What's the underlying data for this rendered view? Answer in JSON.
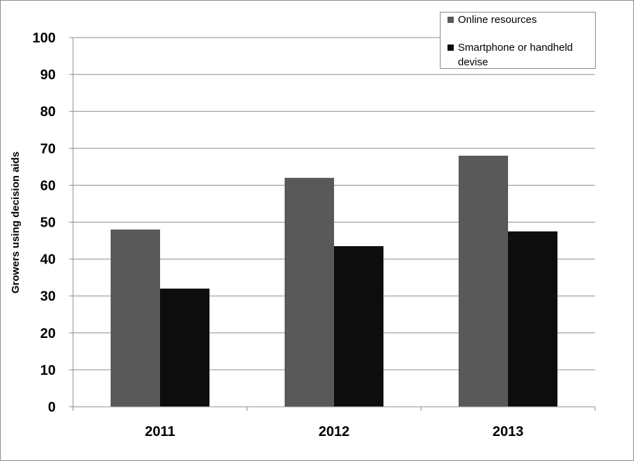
{
  "chart_data": {
    "type": "bar",
    "categories": [
      "2011",
      "2012",
      "2013"
    ],
    "series": [
      {
        "name": "Online resources",
        "color": "#595959",
        "values": [
          48,
          62,
          68
        ]
      },
      {
        "name": "Smartphone or handheld devise",
        "color": "#0d0d0d",
        "values": [
          32,
          43.5,
          47.5
        ]
      }
    ],
    "ylabel": "Growers using decision aids",
    "xlabel": "",
    "title": "",
    "ylim": [
      0,
      100
    ],
    "yticks": [
      "0",
      "10",
      "20",
      "30",
      "40",
      "50",
      "60",
      "70",
      "80",
      "90",
      "100"
    ],
    "grid": true,
    "legend_position": "top-right"
  }
}
